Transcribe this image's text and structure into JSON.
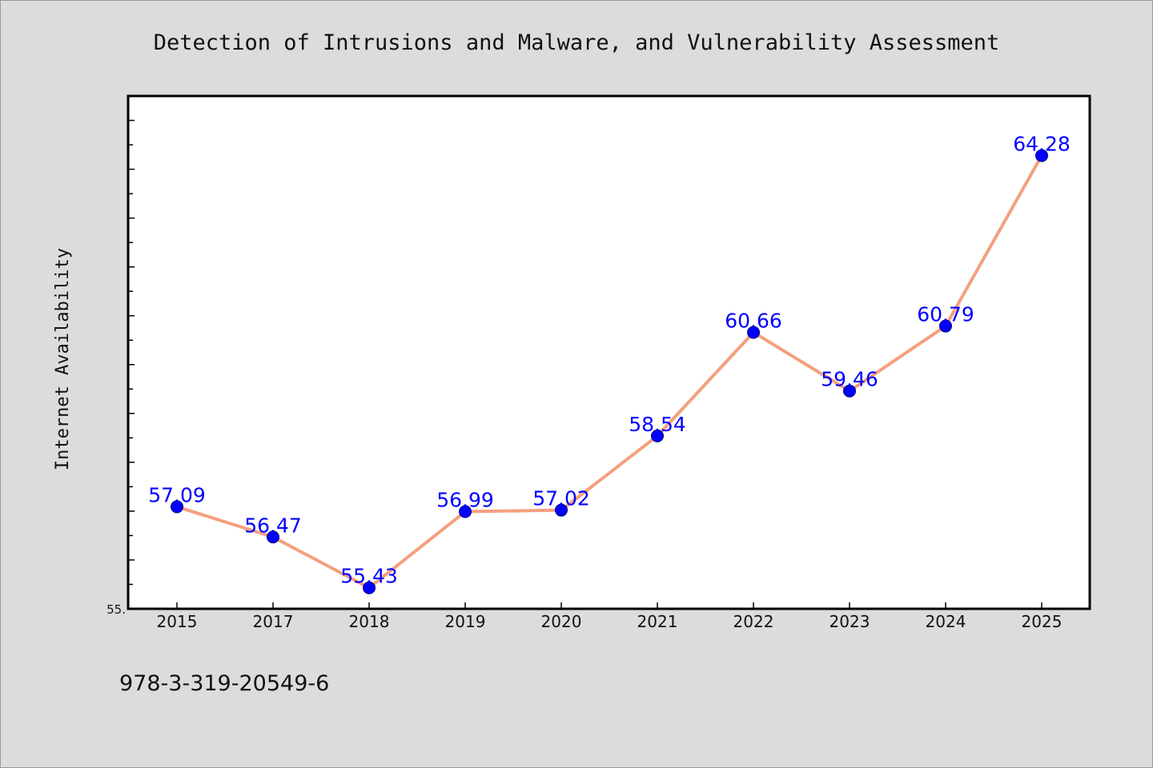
{
  "colors": {
    "background": "#dcdcdc",
    "plot_background": "#ffffff",
    "line": "#f4a07f",
    "marker": "#0000ff",
    "label": "#0000ff",
    "frame": "#000000"
  },
  "footer": {
    "isbn": "978-3-319-20549-6"
  },
  "chart_data": {
    "type": "line",
    "title": "Detection of Intrusions and Malware, and Vulnerability Assessment",
    "xlabel": "",
    "ylabel": "Internet Availability",
    "categories": [
      "2015",
      "2017",
      "2018",
      "2019",
      "2020",
      "2021",
      "2022",
      "2023",
      "2024",
      "2025"
    ],
    "series": [
      {
        "values": [
          57.09,
          56.47,
          55.43,
          56.99,
          57.02,
          58.54,
          60.66,
          59.46,
          60.79,
          64.28
        ],
        "labels": [
          "57.09",
          "56.47",
          "55.43",
          "56.99",
          "57.02",
          "58.54",
          "60.66",
          "59.46",
          "60.79",
          "64.28"
        ]
      }
    ],
    "ylim": [
      55.0,
      65.5
    ],
    "yticks_labeled": [
      "55."
    ],
    "y_minor_step": 0.5,
    "grid": false,
    "legend": "none"
  }
}
